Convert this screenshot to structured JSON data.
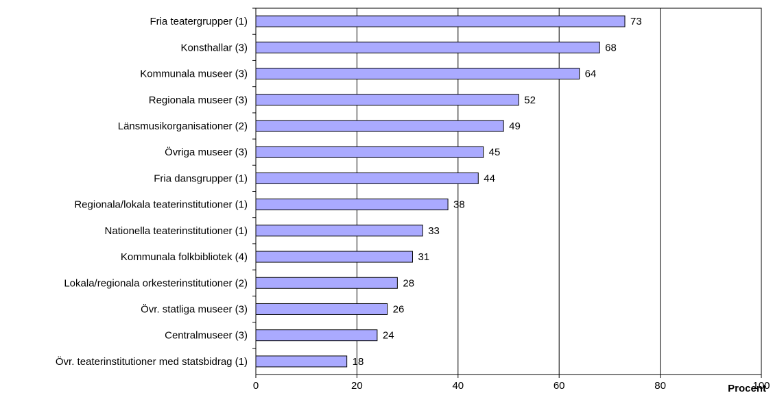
{
  "chart_data": {
    "type": "bar",
    "orientation": "horizontal",
    "categories": [
      "Fria teatergrupper (1)",
      "Konsthallar (3)",
      "Kommunala museer (3)",
      "Regionala museer (3)",
      "Länsmusikorganisationer (2)",
      "Övriga museer (3)",
      "Fria dansgrupper (1)",
      "Regionala/lokala teaterinstitutioner (1)",
      "Nationella teaterinstitutioner (1)",
      "Kommunala folkbibliotek (4)",
      "Lokala/regionala orkesterinstitutioner (2)",
      "Övr. statliga museer (3)",
      "Centralmuseer (3)",
      "Övr. teaterinstitutioner med statsbidrag (1)"
    ],
    "values": [
      73,
      68,
      64,
      52,
      49,
      45,
      44,
      38,
      33,
      31,
      28,
      26,
      24,
      18
    ],
    "xlabel": "Procent",
    "xlim": [
      0,
      100
    ],
    "xticks": [
      0,
      20,
      40,
      60,
      80,
      100
    ],
    "grid": "vertical",
    "legend": "none",
    "bar_color": "#aaaaff"
  }
}
